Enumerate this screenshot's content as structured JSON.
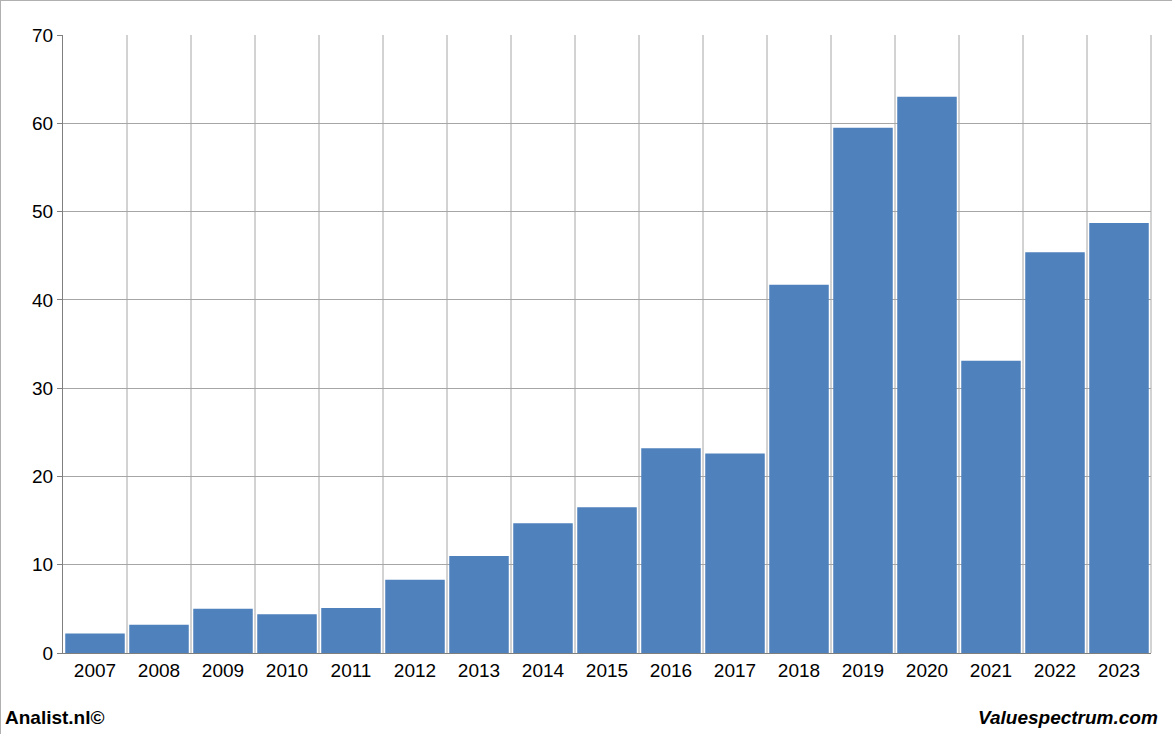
{
  "chart_data": {
    "type": "bar",
    "categories": [
      "2007",
      "2008",
      "2009",
      "2010",
      "2011",
      "2012",
      "2013",
      "2014",
      "2015",
      "2016",
      "2017",
      "2018",
      "2019",
      "2020",
      "2021",
      "2022",
      "2023"
    ],
    "values": [
      2.2,
      3.2,
      5.0,
      4.4,
      5.1,
      8.3,
      11.0,
      14.7,
      16.5,
      23.2,
      22.6,
      41.7,
      59.5,
      63.0,
      33.1,
      45.4,
      48.7
    ],
    "color": "#4f81bd",
    "ylim": [
      0,
      70
    ],
    "yticks": [
      0,
      10,
      20,
      30,
      40,
      50,
      60,
      70
    ],
    "grid": true,
    "annotations": [
      "Analist.nl©",
      "Valuespectrum.com"
    ]
  }
}
